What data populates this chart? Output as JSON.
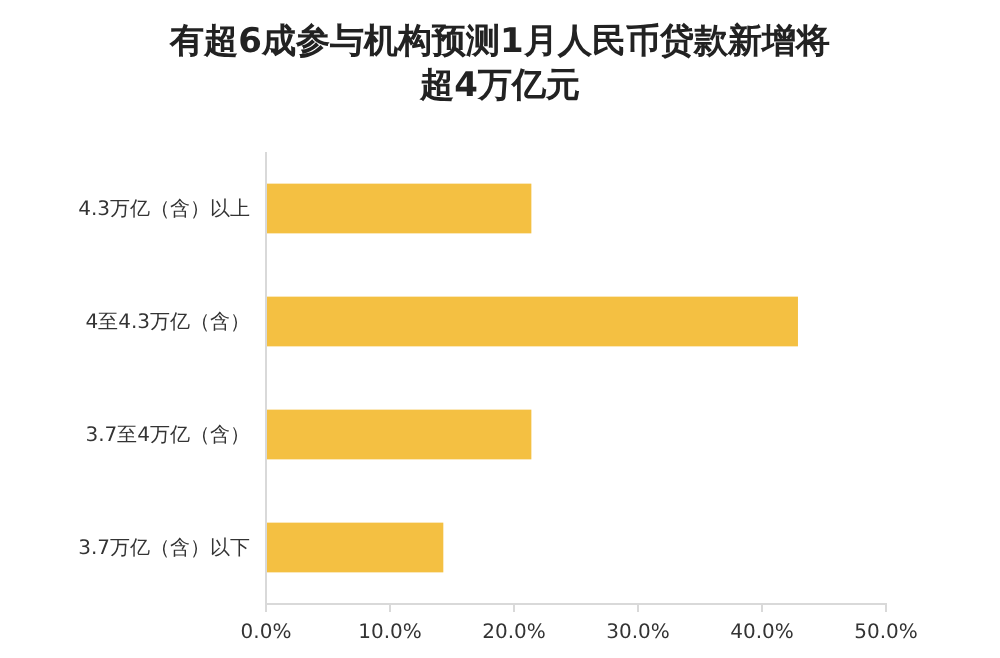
{
  "chart_data": {
    "type": "bar",
    "orientation": "horizontal",
    "title": "有超6成参与机构预测1月人民币贷款新增将超4万亿元",
    "categories": [
      "4.3万亿（含）以上",
      "4至4.3万亿（含）",
      "3.7至4万亿（含）",
      "3.7万亿（含）以下"
    ],
    "values": [
      21.4,
      42.9,
      21.4,
      14.3
    ],
    "color": "#f4c042",
    "xlim": [
      0,
      50
    ],
    "xticks": [
      {
        "value": 0,
        "label": "0.0%"
      },
      {
        "value": 10,
        "label": "10.0%"
      },
      {
        "value": 20,
        "label": "20.0%"
      },
      {
        "value": 30,
        "label": "30.0%"
      },
      {
        "value": 40,
        "label": "40.0%"
      },
      {
        "value": 50,
        "label": "50.0%"
      }
    ],
    "grid": false
  }
}
